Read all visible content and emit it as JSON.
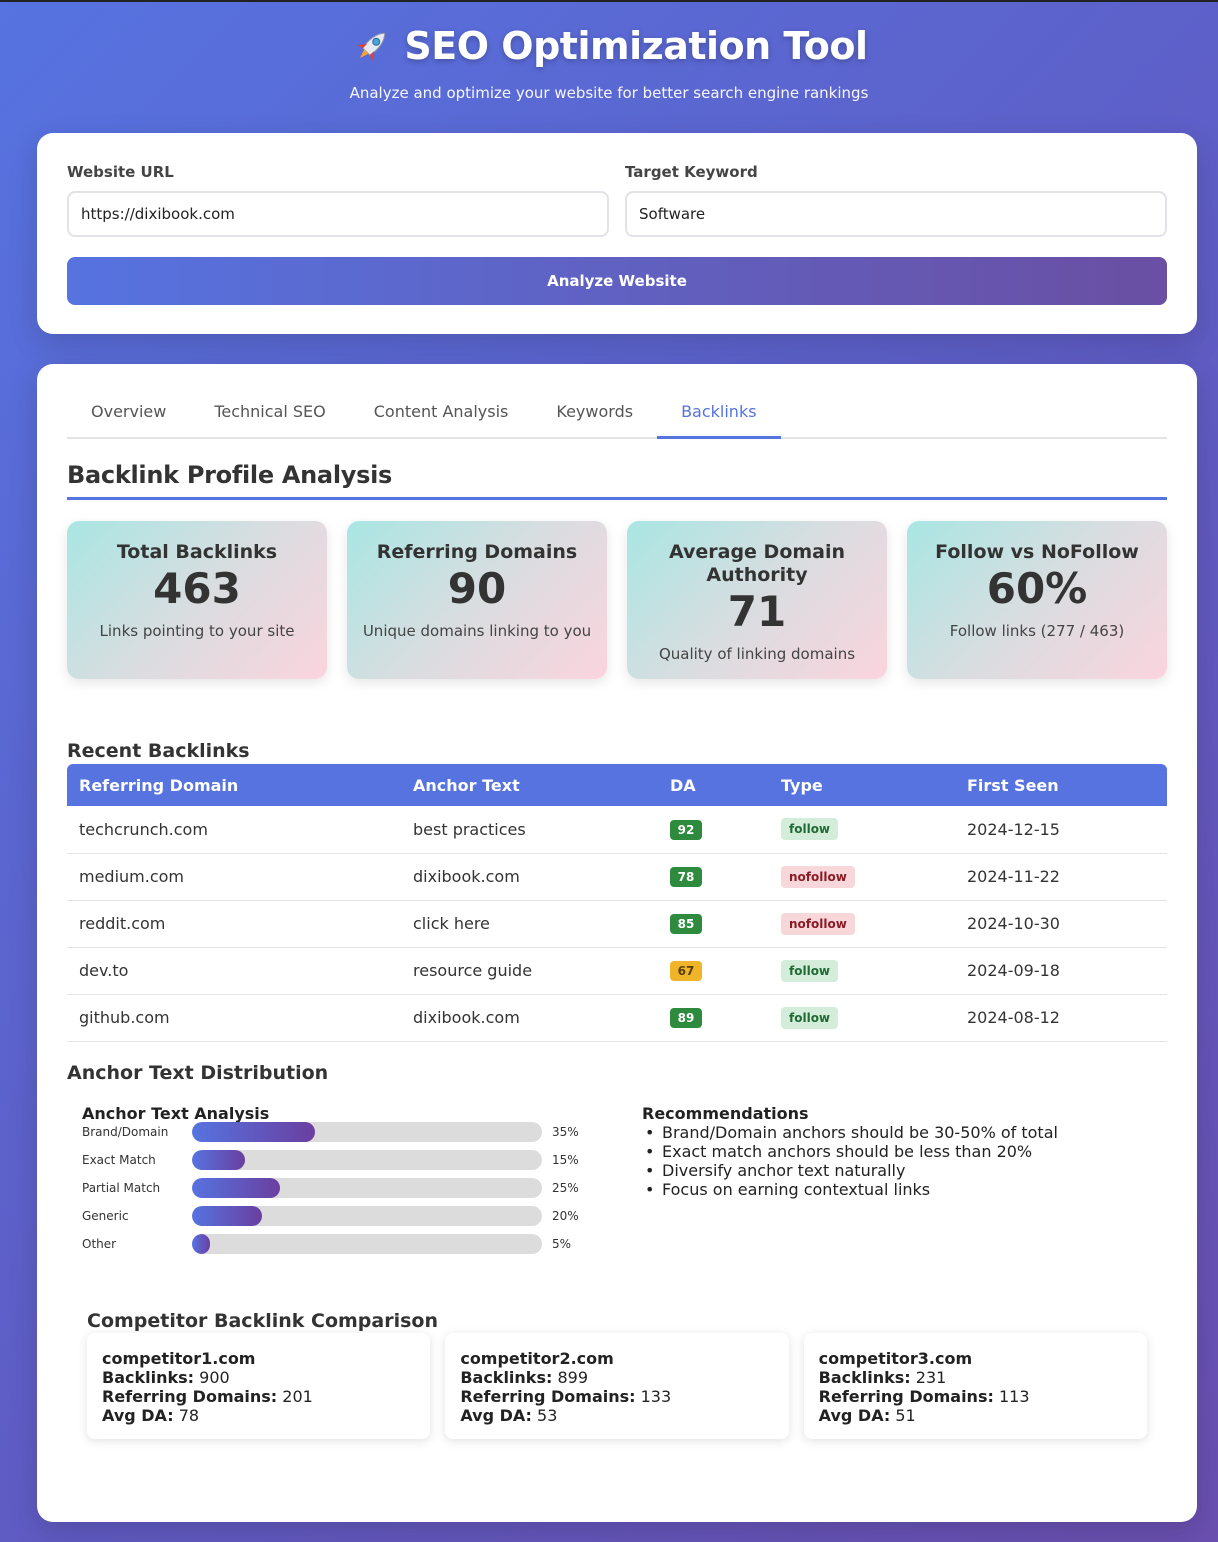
{
  "header": {
    "title": "SEO Optimization Tool",
    "subtitle": "Analyze and optimize your website for better search engine rankings"
  },
  "form": {
    "url_label": "Website URL",
    "url_value": "https://dixibook.com",
    "keyword_label": "Target Keyword",
    "keyword_value": "Software",
    "analyze_button": "Analyze Website"
  },
  "tabs": [
    {
      "label": "Overview"
    },
    {
      "label": "Technical SEO"
    },
    {
      "label": "Content Analysis"
    },
    {
      "label": "Keywords"
    },
    {
      "label": "Backlinks"
    }
  ],
  "active_tab": "Backlinks",
  "backlinks": {
    "section_title": "Backlink Profile Analysis",
    "metrics": [
      {
        "label": "Total Backlinks",
        "value": "463",
        "desc": "Links pointing to your site"
      },
      {
        "label": "Referring Domains",
        "value": "90",
        "desc": "Unique domains linking to you"
      },
      {
        "label": "Average Domain Authority",
        "value": "71",
        "desc": "Quality of linking domains"
      },
      {
        "label": "Follow vs NoFollow",
        "value": "60%",
        "desc": "Follow links (277 / 463)"
      }
    ],
    "recent_title": "Recent Backlinks",
    "columns": [
      "Referring Domain",
      "Anchor Text",
      "DA",
      "Type",
      "First Seen"
    ],
    "rows": [
      {
        "domain": "techcrunch.com",
        "anchor": "best practices",
        "da": "92",
        "type": "follow",
        "first_seen": "2024-12-15"
      },
      {
        "domain": "medium.com",
        "anchor": "dixibook.com",
        "da": "78",
        "type": "nofollow",
        "first_seen": "2024-11-22"
      },
      {
        "domain": "reddit.com",
        "anchor": "click here",
        "da": "85",
        "type": "nofollow",
        "first_seen": "2024-10-30"
      },
      {
        "domain": "dev.to",
        "anchor": "resource guide",
        "da": "67",
        "type": "follow",
        "first_seen": "2024-09-18"
      },
      {
        "domain": "github.com",
        "anchor": "dixibook.com",
        "da": "89",
        "type": "follow",
        "first_seen": "2024-08-12"
      }
    ],
    "anchor_title": "Anchor Text Distribution",
    "anchor_panel_title": "Anchor Text Analysis",
    "anchor_bars": [
      {
        "label": "Brand/Domain",
        "percent": 35,
        "pct_text": "35%"
      },
      {
        "label": "Exact Match",
        "percent": 15,
        "pct_text": "15%"
      },
      {
        "label": "Partial Match",
        "percent": 25,
        "pct_text": "25%"
      },
      {
        "label": "Generic",
        "percent": 20,
        "pct_text": "20%"
      },
      {
        "label": "Other",
        "percent": 5,
        "pct_text": "5%"
      }
    ],
    "reco_title": "Recommendations",
    "recommendations": [
      "Brand/Domain anchors should be 30-50% of total",
      "Exact match anchors should be less than 20%",
      "Diversify anchor text naturally",
      "Focus on earning contextual links"
    ],
    "competitor_title": "Competitor Backlink Comparison",
    "competitor_labels": {
      "backlinks": "Backlinks:",
      "domains": "Referring Domains:",
      "da": "Avg DA:"
    },
    "competitors": [
      {
        "name": "competitor1.com",
        "backlinks": "900",
        "domains": "201",
        "da": "78"
      },
      {
        "name": "competitor2.com",
        "backlinks": "899",
        "domains": "133",
        "da": "53"
      },
      {
        "name": "competitor3.com",
        "backlinks": "231",
        "domains": "113",
        "da": "51"
      }
    ]
  },
  "colors": {
    "accent": "#5673e0",
    "da_green": "#2e8b3e",
    "da_yellow": "#f0b429"
  }
}
